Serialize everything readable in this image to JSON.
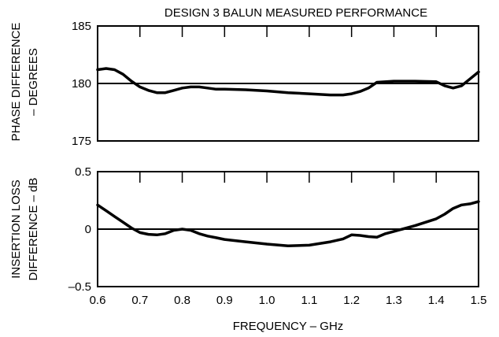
{
  "chart_data": [
    {
      "type": "line",
      "title": "DESIGN 3 BALUN MEASURED PERFORMANCE",
      "ylabel_lines": [
        "PHASE DIFFERENCE",
        "– DEGREES"
      ],
      "xlim": [
        0.6,
        1.5
      ],
      "ylim": [
        175,
        185
      ],
      "yticks": [
        175,
        180,
        185
      ],
      "xticks": [
        0.6,
        0.7,
        0.8,
        0.9,
        1.0,
        1.1,
        1.2,
        1.3,
        1.4,
        1.5
      ],
      "reference_line": 180,
      "series": [
        {
          "x": [
            0.6,
            0.62,
            0.64,
            0.66,
            0.68,
            0.7,
            0.72,
            0.74,
            0.76,
            0.78,
            0.8,
            0.82,
            0.84,
            0.86,
            0.88,
            0.9,
            0.95,
            1.0,
            1.05,
            1.1,
            1.15,
            1.18,
            1.2,
            1.22,
            1.24,
            1.26,
            1.3,
            1.35,
            1.4,
            1.42,
            1.44,
            1.46,
            1.48,
            1.5
          ],
          "y": [
            181.2,
            181.3,
            181.2,
            180.8,
            180.2,
            179.7,
            179.4,
            179.2,
            179.2,
            179.4,
            179.6,
            179.7,
            179.7,
            179.6,
            179.5,
            179.5,
            179.45,
            179.35,
            179.2,
            179.1,
            179.0,
            179.0,
            179.1,
            179.3,
            179.6,
            180.1,
            180.2,
            180.2,
            180.15,
            179.8,
            179.6,
            179.8,
            180.4,
            181.0
          ]
        }
      ]
    },
    {
      "type": "line",
      "ylabel_lines": [
        "INSERTION LOSS",
        "DIFFERENCE – dB"
      ],
      "xlabel": "FREQUENCY – GHz",
      "xlim": [
        0.6,
        1.5
      ],
      "ylim": [
        -0.5,
        0.5
      ],
      "yticks": [
        -0.5,
        0,
        0.5
      ],
      "ytick_labels": [
        "–0.5",
        "0",
        "0.5"
      ],
      "xticks": [
        0.6,
        0.7,
        0.8,
        0.9,
        1.0,
        1.1,
        1.2,
        1.3,
        1.4,
        1.5
      ],
      "xtick_labels": [
        "0.6",
        "0.7",
        "0.8",
        "0.9",
        "1.0",
        "1.1",
        "1.2",
        "1.3",
        "1.4",
        "1.5"
      ],
      "reference_line": 0,
      "series": [
        {
          "x": [
            0.6,
            0.62,
            0.64,
            0.66,
            0.68,
            0.7,
            0.72,
            0.74,
            0.76,
            0.78,
            0.8,
            0.82,
            0.84,
            0.86,
            0.88,
            0.9,
            0.95,
            1.0,
            1.05,
            1.1,
            1.15,
            1.18,
            1.2,
            1.22,
            1.24,
            1.26,
            1.28,
            1.3,
            1.32,
            1.35,
            1.4,
            1.42,
            1.44,
            1.46,
            1.48,
            1.5
          ],
          "y": [
            0.21,
            0.16,
            0.11,
            0.06,
            0.01,
            -0.03,
            -0.045,
            -0.05,
            -0.04,
            -0.01,
            0.0,
            -0.01,
            -0.04,
            -0.06,
            -0.075,
            -0.09,
            -0.11,
            -0.13,
            -0.145,
            -0.14,
            -0.11,
            -0.085,
            -0.05,
            -0.055,
            -0.065,
            -0.07,
            -0.04,
            -0.02,
            0.0,
            0.03,
            0.09,
            0.13,
            0.18,
            0.21,
            0.22,
            0.24
          ]
        }
      ]
    }
  ]
}
